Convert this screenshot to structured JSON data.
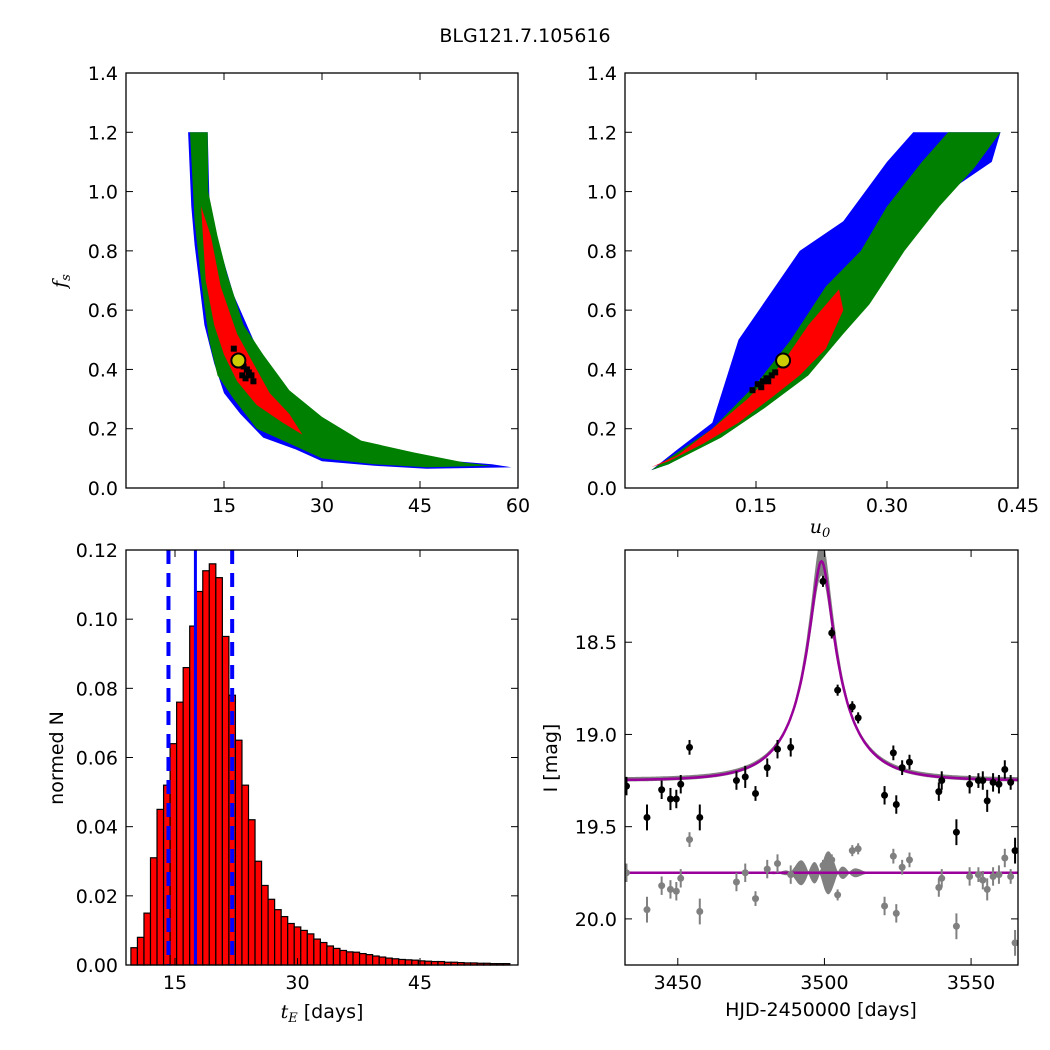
{
  "figure": {
    "title": "BLG121.7.105616"
  },
  "chart_data": [
    {
      "type": "heatmap",
      "panel": "tE-fs",
      "xlabel": "",
      "ylabel": "f_s",
      "ylabel_main": "f",
      "ylabel_sub": "s",
      "xlim": [
        0,
        60
      ],
      "ylim": [
        0,
        1.4
      ],
      "xticks": [
        15,
        30,
        45,
        60
      ],
      "yticks": [
        0.0,
        0.2,
        0.4,
        0.6,
        0.8,
        1.0,
        1.2,
        1.4
      ],
      "grid": false,
      "regions": [
        {
          "color": "#0000ff",
          "points": [
            [
              9.5,
              1.2
            ],
            [
              12.5,
              1.2
            ],
            [
              12.8,
              0.95
            ],
            [
              14.5,
              0.8
            ],
            [
              16.5,
              0.65
            ],
            [
              19.5,
              0.5
            ],
            [
              23,
              0.36
            ],
            [
              28,
              0.25
            ],
            [
              33,
              0.17
            ],
            [
              38,
              0.14
            ],
            [
              45,
              0.1
            ],
            [
              56,
              0.08
            ],
            [
              59,
              0.07
            ],
            [
              46,
              0.065
            ],
            [
              38,
              0.075
            ],
            [
              30,
              0.09
            ],
            [
              26,
              0.13
            ],
            [
              21,
              0.17
            ],
            [
              17.5,
              0.25
            ],
            [
              15,
              0.32
            ],
            [
              13.5,
              0.42
            ],
            [
              12,
              0.55
            ],
            [
              10.5,
              0.82
            ],
            [
              10,
              0.95
            ],
            [
              9.5,
              1.2
            ]
          ]
        },
        {
          "color": "#008000",
          "points": [
            [
              9.8,
              1.2
            ],
            [
              12.5,
              1.2
            ],
            [
              12.6,
              1.0
            ],
            [
              14,
              0.85
            ],
            [
              15.5,
              0.72
            ],
            [
              18,
              0.55
            ],
            [
              21,
              0.45
            ],
            [
              25,
              0.33
            ],
            [
              30,
              0.24
            ],
            [
              36,
              0.16
            ],
            [
              44,
              0.12
            ],
            [
              52,
              0.085
            ],
            [
              56,
              0.075
            ],
            [
              46,
              0.07
            ],
            [
              38,
              0.08
            ],
            [
              30,
              0.1
            ],
            [
              25,
              0.15
            ],
            [
              20,
              0.2
            ],
            [
              16.5,
              0.3
            ],
            [
              14,
              0.38
            ],
            [
              12.7,
              0.5
            ],
            [
              11.5,
              0.7
            ],
            [
              10.5,
              0.9
            ],
            [
              9.8,
              1.2
            ]
          ]
        },
        {
          "color": "#ff0000",
          "points": [
            [
              11.5,
              0.95
            ],
            [
              13,
              0.85
            ],
            [
              14.5,
              0.68
            ],
            [
              17,
              0.52
            ],
            [
              19.5,
              0.42
            ],
            [
              22,
              0.32
            ],
            [
              25,
              0.25
            ],
            [
              27,
              0.18
            ],
            [
              24,
              0.22
            ],
            [
              20,
              0.28
            ],
            [
              17,
              0.36
            ],
            [
              15,
              0.45
            ],
            [
              13.5,
              0.55
            ],
            [
              12.2,
              0.7
            ],
            [
              11.5,
              0.95
            ]
          ]
        }
      ],
      "black_points": [
        [
          16.5,
          0.47
        ],
        [
          16.9,
          0.44
        ],
        [
          17.4,
          0.42
        ],
        [
          18,
          0.41
        ],
        [
          18.5,
          0.4
        ],
        [
          18.8,
          0.39
        ],
        [
          19.2,
          0.38
        ],
        [
          19.5,
          0.36
        ],
        [
          18.3,
          0.37
        ],
        [
          17.8,
          0.38
        ]
      ],
      "best_fit": [
        17.2,
        0.43
      ]
    },
    {
      "type": "heatmap",
      "panel": "u0-fs",
      "xlabel": "u_0",
      "xlabel_main": "u",
      "xlabel_sub": "0",
      "ylabel": "",
      "xlim": [
        0,
        0.45
      ],
      "ylim": [
        0,
        1.4
      ],
      "xticks": [
        0.15,
        0.3,
        0.45
      ],
      "xtick_labels": [
        "0.15",
        "0.30",
        "0.45"
      ],
      "yticks": [
        0.0,
        0.2,
        0.4,
        0.6,
        0.8,
        1.0,
        1.2,
        1.4
      ],
      "grid": false,
      "regions": [
        {
          "color": "#0000ff",
          "points": [
            [
              0.03,
              0.06
            ],
            [
              0.06,
              0.13
            ],
            [
              0.1,
              0.22
            ],
            [
              0.13,
              0.5
            ],
            [
              0.2,
              0.8
            ],
            [
              0.25,
              0.9
            ],
            [
              0.3,
              1.1
            ],
            [
              0.33,
              1.2
            ],
            [
              0.43,
              1.2
            ],
            [
              0.42,
              1.1
            ],
            [
              0.38,
              1.02
            ],
            [
              0.34,
              0.9
            ],
            [
              0.3,
              0.73
            ],
            [
              0.27,
              0.6
            ],
            [
              0.24,
              0.5
            ],
            [
              0.2,
              0.36
            ],
            [
              0.15,
              0.25
            ],
            [
              0.1,
              0.16
            ],
            [
              0.05,
              0.08
            ],
            [
              0.03,
              0.06
            ]
          ]
        },
        {
          "color": "#008000",
          "points": [
            [
              0.03,
              0.06
            ],
            [
              0.06,
              0.12
            ],
            [
              0.1,
              0.2
            ],
            [
              0.15,
              0.35
            ],
            [
              0.19,
              0.5
            ],
            [
              0.23,
              0.68
            ],
            [
              0.27,
              0.8
            ],
            [
              0.3,
              0.95
            ],
            [
              0.34,
              1.1
            ],
            [
              0.37,
              1.2
            ],
            [
              0.43,
              1.2
            ],
            [
              0.4,
              1.08
            ],
            [
              0.36,
              0.95
            ],
            [
              0.32,
              0.8
            ],
            [
              0.28,
              0.62
            ],
            [
              0.25,
              0.52
            ],
            [
              0.21,
              0.38
            ],
            [
              0.16,
              0.27
            ],
            [
              0.11,
              0.17
            ],
            [
              0.05,
              0.08
            ],
            [
              0.03,
              0.06
            ]
          ]
        },
        {
          "color": "#ff0000",
          "points": [
            [
              0.03,
              0.07
            ],
            [
              0.06,
              0.11
            ],
            [
              0.1,
              0.2
            ],
            [
              0.14,
              0.3
            ],
            [
              0.18,
              0.42
            ],
            [
              0.21,
              0.55
            ],
            [
              0.245,
              0.67
            ],
            [
              0.25,
              0.6
            ],
            [
              0.23,
              0.47
            ],
            [
              0.2,
              0.38
            ],
            [
              0.17,
              0.31
            ],
            [
              0.13,
              0.22
            ],
            [
              0.09,
              0.15
            ],
            [
              0.05,
              0.09
            ],
            [
              0.03,
              0.07
            ]
          ]
        }
      ],
      "black_points": [
        [
          0.146,
          0.33
        ],
        [
          0.152,
          0.35
        ],
        [
          0.158,
          0.36
        ],
        [
          0.162,
          0.37
        ],
        [
          0.168,
          0.38
        ],
        [
          0.172,
          0.39
        ],
        [
          0.164,
          0.36
        ],
        [
          0.156,
          0.34
        ]
      ],
      "best_fit": [
        0.181,
        0.43
      ]
    },
    {
      "type": "bar",
      "panel": "tE-histogram",
      "xlabel": "t_E",
      "xlabel_main": "t",
      "xlabel_sub": "E",
      "xlabel_unit": "[days]",
      "ylabel": "normed N",
      "xlim": [
        9,
        57
      ],
      "ylim": [
        0,
        0.12
      ],
      "xticks": [
        15,
        30,
        45
      ],
      "yticks": [
        0.0,
        0.02,
        0.04,
        0.06,
        0.08,
        0.1,
        0.12
      ],
      "ytick_labels": [
        "0.00",
        "0.02",
        "0.04",
        "0.06",
        "0.08",
        "0.10",
        "0.12"
      ],
      "bin_start": 9.6,
      "bin_width": 0.8,
      "values": [
        0.005,
        0.008,
        0.015,
        0.031,
        0.045,
        0.052,
        0.064,
        0.076,
        0.086,
        0.098,
        0.108,
        0.114,
        0.116,
        0.112,
        0.095,
        0.078,
        0.065,
        0.052,
        0.042,
        0.03,
        0.023,
        0.019,
        0.016,
        0.014,
        0.012,
        0.011,
        0.01,
        0.009,
        0.0075,
        0.0065,
        0.0055,
        0.0048,
        0.0042,
        0.0038,
        0.0037,
        0.0033,
        0.003,
        0.0026,
        0.0023,
        0.002,
        0.0018,
        0.0016,
        0.0015,
        0.0014,
        0.0012,
        0.0011,
        0.001,
        0.001,
        0.0008,
        0.0008,
        0.0007,
        0.0006,
        0.0006,
        0.0005,
        0.0005,
        0.0004,
        0.0004,
        0.0004
      ],
      "bar_color": "#ff0000",
      "median_line": 17.5,
      "interval_lines": [
        14.2,
        22.0
      ],
      "line_color": "#0000ff"
    },
    {
      "type": "scatter",
      "panel": "light-curve",
      "xlabel": "HJD-2450000 [days]",
      "ylabel": "I [mag]",
      "xlim": [
        3432,
        3566
      ],
      "ylim": [
        20.25,
        18.0
      ],
      "xticks": [
        3450,
        3500,
        3550
      ],
      "yticks": [
        18.5,
        19.0,
        19.5,
        20.0
      ],
      "ytick_labels": [
        "18.5",
        "19.0",
        "19.5",
        "20.0"
      ],
      "model": {
        "t0": 3499.0,
        "tE": 18.0,
        "u0": 0.18,
        "fs": 0.43,
        "base": 19.25
      },
      "model_color": "#990099",
      "band_color": "#808080",
      "residual_offset": 19.75,
      "data": [
        {
          "t": 3432.5,
          "mag": 19.28,
          "err": 0.05
        },
        {
          "t": 3439.5,
          "mag": 19.45,
          "err": 0.07
        },
        {
          "t": 3444.5,
          "mag": 19.3,
          "err": 0.05
        },
        {
          "t": 3447.5,
          "mag": 19.35,
          "err": 0.06
        },
        {
          "t": 3449.5,
          "mag": 19.35,
          "err": 0.05
        },
        {
          "t": 3451.0,
          "mag": 19.27,
          "err": 0.05
        },
        {
          "t": 3454.0,
          "mag": 19.07,
          "err": 0.04
        },
        {
          "t": 3457.5,
          "mag": 19.45,
          "err": 0.07
        },
        {
          "t": 3470.0,
          "mag": 19.25,
          "err": 0.05
        },
        {
          "t": 3473.0,
          "mag": 19.23,
          "err": 0.06
        },
        {
          "t": 3476.5,
          "mag": 19.32,
          "err": 0.04
        },
        {
          "t": 3480.5,
          "mag": 19.18,
          "err": 0.05
        },
        {
          "t": 3484.0,
          "mag": 19.08,
          "err": 0.05
        },
        {
          "t": 3488.5,
          "mag": 19.07,
          "err": 0.05
        },
        {
          "t": 3499.5,
          "mag": 18.17,
          "err": 0.03
        },
        {
          "t": 3502.5,
          "mag": 18.45,
          "err": 0.03
        },
        {
          "t": 3504.5,
          "mag": 18.76,
          "err": 0.03
        },
        {
          "t": 3509.5,
          "mag": 18.85,
          "err": 0.03
        },
        {
          "t": 3511.5,
          "mag": 18.91,
          "err": 0.03
        },
        {
          "t": 3520.5,
          "mag": 19.33,
          "err": 0.05
        },
        {
          "t": 3523.5,
          "mag": 19.1,
          "err": 0.04
        },
        {
          "t": 3524.5,
          "mag": 19.38,
          "err": 0.05
        },
        {
          "t": 3526.5,
          "mag": 19.18,
          "err": 0.04
        },
        {
          "t": 3529.0,
          "mag": 19.15,
          "err": 0.04
        },
        {
          "t": 3539.0,
          "mag": 19.31,
          "err": 0.05
        },
        {
          "t": 3540.0,
          "mag": 19.25,
          "err": 0.05
        },
        {
          "t": 3545.0,
          "mag": 19.53,
          "err": 0.07
        },
        {
          "t": 3549.5,
          "mag": 19.27,
          "err": 0.05
        },
        {
          "t": 3552.5,
          "mag": 19.25,
          "err": 0.04
        },
        {
          "t": 3554.0,
          "mag": 19.25,
          "err": 0.05
        },
        {
          "t": 3555.5,
          "mag": 19.36,
          "err": 0.06
        },
        {
          "t": 3557.5,
          "mag": 19.26,
          "err": 0.05
        },
        {
          "t": 3559.5,
          "mag": 19.27,
          "err": 0.05
        },
        {
          "t": 3561.5,
          "mag": 19.19,
          "err": 0.05
        },
        {
          "t": 3563.5,
          "mag": 19.26,
          "err": 0.04
        },
        {
          "t": 3565.0,
          "mag": 19.63,
          "err": 0.07
        }
      ],
      "residuals": [
        {
          "t": 3432.5,
          "mag": 19.75,
          "err": 0.05
        },
        {
          "t": 3439.5,
          "mag": 19.95,
          "err": 0.07
        },
        {
          "t": 3444.5,
          "mag": 19.82,
          "err": 0.05
        },
        {
          "t": 3447.5,
          "mag": 19.84,
          "err": 0.05
        },
        {
          "t": 3449.5,
          "mag": 19.85,
          "err": 0.05
        },
        {
          "t": 3451.0,
          "mag": 19.78,
          "err": 0.05
        },
        {
          "t": 3454.0,
          "mag": 19.57,
          "err": 0.04
        },
        {
          "t": 3457.5,
          "mag": 19.96,
          "err": 0.07
        },
        {
          "t": 3470.0,
          "mag": 19.8,
          "err": 0.05
        },
        {
          "t": 3473.0,
          "mag": 19.75,
          "err": 0.05
        },
        {
          "t": 3476.5,
          "mag": 19.89,
          "err": 0.04
        },
        {
          "t": 3480.5,
          "mag": 19.73,
          "err": 0.05
        },
        {
          "t": 3484.0,
          "mag": 19.7,
          "err": 0.05
        },
        {
          "t": 3488.5,
          "mag": 19.76,
          "err": 0.05
        },
        {
          "t": 3499.5,
          "mag": 19.71,
          "err": 0.03
        },
        {
          "t": 3502.5,
          "mag": 19.68,
          "err": 0.03
        },
        {
          "t": 3504.5,
          "mag": 19.87,
          "err": 0.03
        },
        {
          "t": 3509.5,
          "mag": 19.63,
          "err": 0.03
        },
        {
          "t": 3511.5,
          "mag": 19.62,
          "err": 0.03
        },
        {
          "t": 3520.5,
          "mag": 19.93,
          "err": 0.05
        },
        {
          "t": 3523.5,
          "mag": 19.66,
          "err": 0.04
        },
        {
          "t": 3524.5,
          "mag": 19.97,
          "err": 0.05
        },
        {
          "t": 3526.5,
          "mag": 19.72,
          "err": 0.04
        },
        {
          "t": 3529.0,
          "mag": 19.68,
          "err": 0.04
        },
        {
          "t": 3539.0,
          "mag": 19.83,
          "err": 0.05
        },
        {
          "t": 3540.0,
          "mag": 19.78,
          "err": 0.05
        },
        {
          "t": 3545.0,
          "mag": 20.04,
          "err": 0.07
        },
        {
          "t": 3549.5,
          "mag": 19.77,
          "err": 0.05
        },
        {
          "t": 3552.5,
          "mag": 19.76,
          "err": 0.04
        },
        {
          "t": 3554.0,
          "mag": 19.79,
          "err": 0.05
        },
        {
          "t": 3555.5,
          "mag": 19.84,
          "err": 0.06
        },
        {
          "t": 3557.5,
          "mag": 19.77,
          "err": 0.05
        },
        {
          "t": 3559.5,
          "mag": 19.76,
          "err": 0.05
        },
        {
          "t": 3561.5,
          "mag": 19.67,
          "err": 0.05
        },
        {
          "t": 3563.5,
          "mag": 19.77,
          "err": 0.04
        },
        {
          "t": 3565.0,
          "mag": 20.13,
          "err": 0.07
        }
      ]
    }
  ]
}
